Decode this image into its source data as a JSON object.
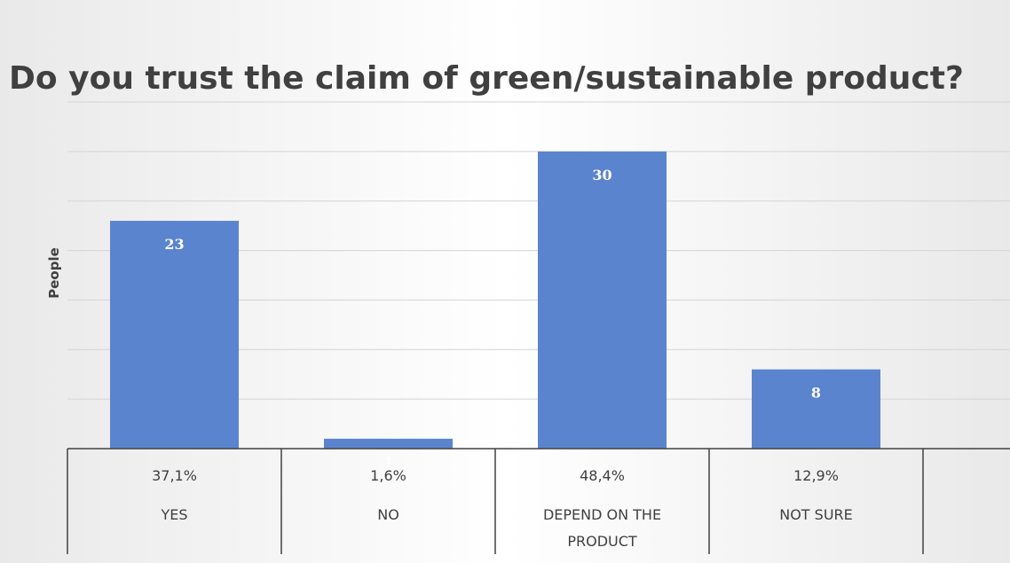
{
  "chart_data": {
    "type": "bar",
    "title": "Do you trust the claim of green/sustainable product?",
    "ylabel": "People",
    "xlabel": "",
    "categories": [
      "YES",
      "NO",
      "DEPEND ON THE PRODUCT",
      "NOT SURE"
    ],
    "category_lines": [
      [
        "YES"
      ],
      [
        "NO"
      ],
      [
        "DEPEND ON THE",
        "PRODUCT"
      ],
      [
        "NOT SURE"
      ]
    ],
    "percentages": [
      "37,1%",
      "1,6%",
      "48,4%",
      "12,9%"
    ],
    "series": [
      {
        "values": [
          23,
          1,
          30,
          8
        ],
        "color": "#5b84ce"
      }
    ],
    "ylim": [
      0,
      35
    ],
    "grid": true,
    "legend": "none"
  },
  "colors": {
    "bar": "#5b84ce",
    "title": "#404040",
    "axis": "#404040",
    "grid": "#d4d4d4",
    "data_label": "#ffffff"
  }
}
